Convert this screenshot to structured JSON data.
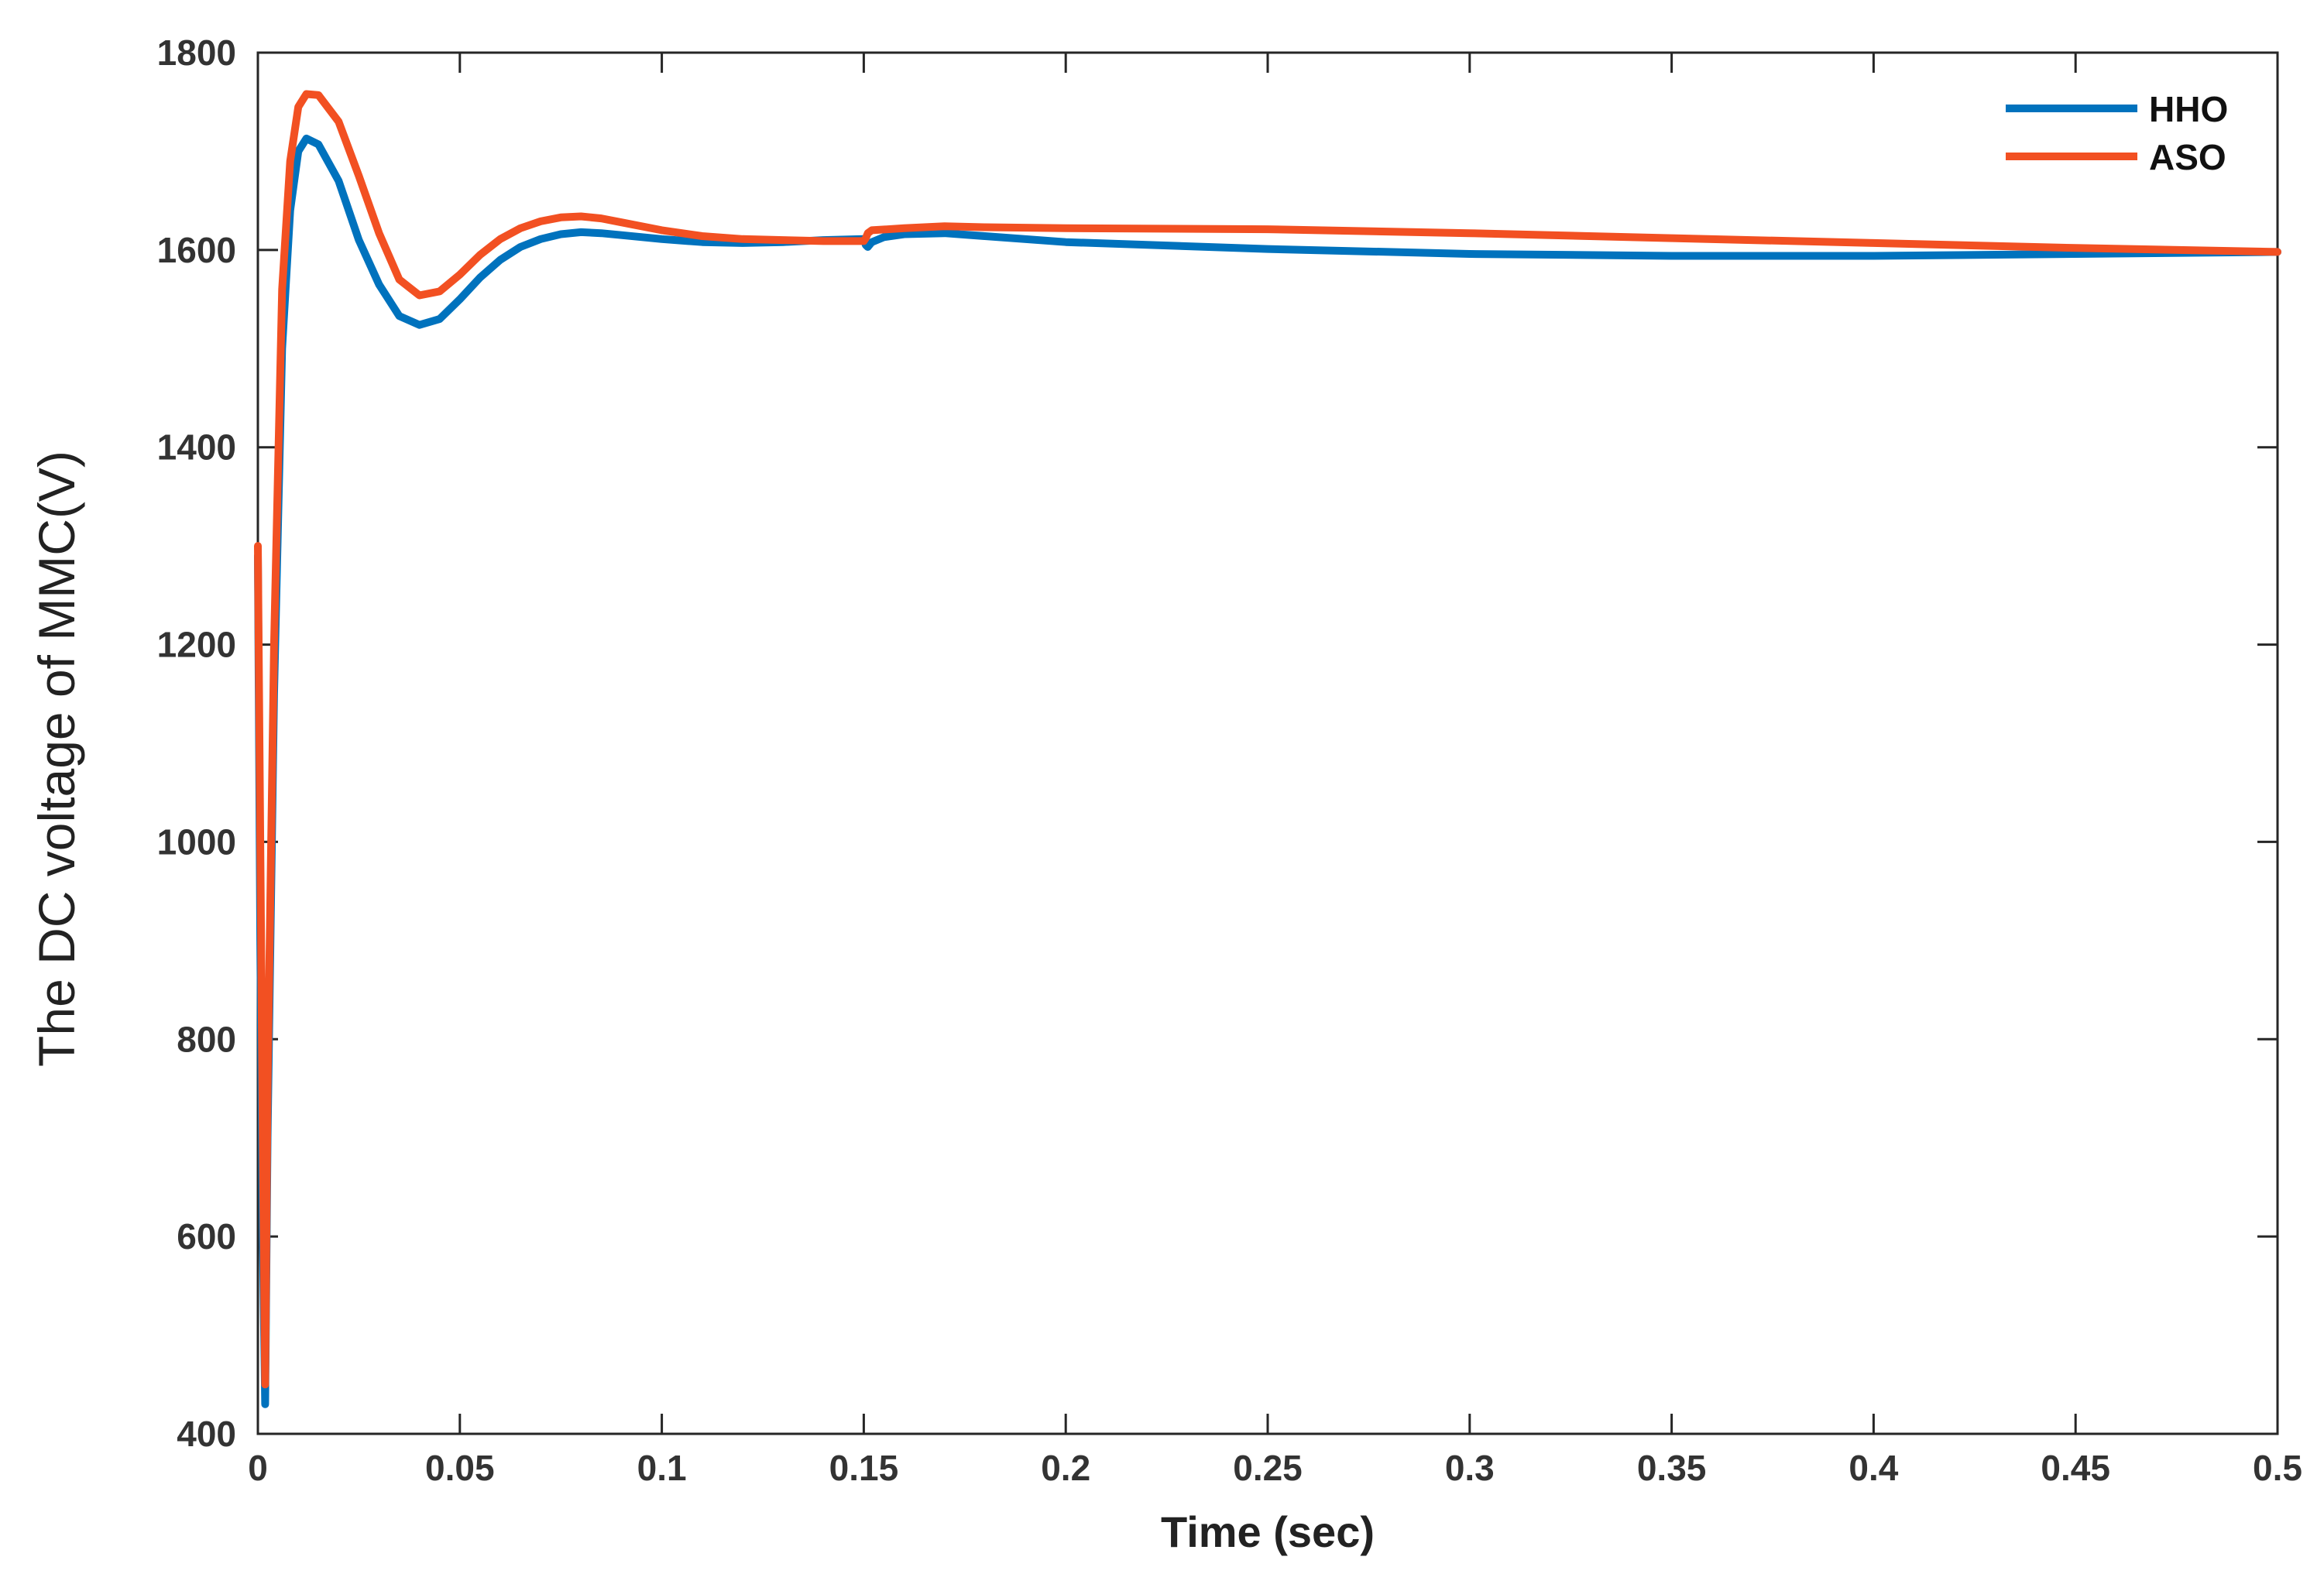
{
  "chart_data": {
    "type": "line",
    "title": "",
    "xlabel": "Time (sec)",
    "ylabel": "The DC voltage of MMC(V)",
    "xlim": [
      0,
      0.5
    ],
    "ylim": [
      400,
      1800
    ],
    "xticks": [
      0,
      0.05,
      0.1,
      0.15,
      0.2,
      0.25,
      0.3,
      0.35,
      0.4,
      0.45,
      0.5
    ],
    "xtick_labels": [
      "0",
      "0.05",
      "0.1",
      "0.15",
      "0.2",
      "0.25",
      "0.3",
      "0.35",
      "0.4",
      "0.45",
      "0.5"
    ],
    "yticks": [
      400,
      600,
      800,
      1000,
      1200,
      1400,
      1600,
      1800
    ],
    "ytick_labels": [
      "400",
      "600",
      "800",
      "1000",
      "1200",
      "1400",
      "1600",
      "1800"
    ],
    "grid": false,
    "legend_position": "top-right",
    "series": [
      {
        "name": "HHO",
        "color": "#0072BD",
        "points": [
          [
            0.0,
            1290
          ],
          [
            0.0006,
            900
          ],
          [
            0.0012,
            600
          ],
          [
            0.0018,
            430
          ],
          [
            0.0024,
            700
          ],
          [
            0.004,
            1150
          ],
          [
            0.006,
            1500
          ],
          [
            0.008,
            1640
          ],
          [
            0.01,
            1700
          ],
          [
            0.012,
            1713
          ],
          [
            0.015,
            1707
          ],
          [
            0.02,
            1670
          ],
          [
            0.025,
            1610
          ],
          [
            0.03,
            1565
          ],
          [
            0.035,
            1533
          ],
          [
            0.04,
            1524
          ],
          [
            0.045,
            1530
          ],
          [
            0.05,
            1550
          ],
          [
            0.055,
            1572
          ],
          [
            0.06,
            1590
          ],
          [
            0.065,
            1603
          ],
          [
            0.07,
            1611
          ],
          [
            0.075,
            1616
          ],
          [
            0.08,
            1618
          ],
          [
            0.085,
            1617
          ],
          [
            0.09,
            1615
          ],
          [
            0.1,
            1611
          ],
          [
            0.11,
            1608
          ],
          [
            0.12,
            1607
          ],
          [
            0.13,
            1608
          ],
          [
            0.14,
            1610
          ],
          [
            0.15,
            1611
          ],
          [
            0.1505,
            1605
          ],
          [
            0.151,
            1603
          ],
          [
            0.152,
            1608
          ],
          [
            0.155,
            1613
          ],
          [
            0.16,
            1616
          ],
          [
            0.17,
            1617
          ],
          [
            0.18,
            1614
          ],
          [
            0.2,
            1608
          ],
          [
            0.25,
            1601
          ],
          [
            0.3,
            1596
          ],
          [
            0.35,
            1594
          ],
          [
            0.4,
            1594
          ],
          [
            0.45,
            1596
          ],
          [
            0.5,
            1598
          ]
        ]
      },
      {
        "name": "ASO",
        "color": "#F25022",
        "points": [
          [
            0.0,
            1300
          ],
          [
            0.0006,
            1000
          ],
          [
            0.0012,
            700
          ],
          [
            0.0018,
            450
          ],
          [
            0.0024,
            750
          ],
          [
            0.004,
            1200
          ],
          [
            0.006,
            1560
          ],
          [
            0.008,
            1690
          ],
          [
            0.01,
            1745
          ],
          [
            0.012,
            1758
          ],
          [
            0.015,
            1757
          ],
          [
            0.02,
            1730
          ],
          [
            0.025,
            1675
          ],
          [
            0.03,
            1617
          ],
          [
            0.035,
            1570
          ],
          [
            0.04,
            1554
          ],
          [
            0.045,
            1558
          ],
          [
            0.05,
            1575
          ],
          [
            0.055,
            1595
          ],
          [
            0.06,
            1611
          ],
          [
            0.065,
            1622
          ],
          [
            0.07,
            1629
          ],
          [
            0.075,
            1633
          ],
          [
            0.08,
            1634
          ],
          [
            0.085,
            1632
          ],
          [
            0.09,
            1628
          ],
          [
            0.1,
            1620
          ],
          [
            0.11,
            1614
          ],
          [
            0.12,
            1611
          ],
          [
            0.13,
            1610
          ],
          [
            0.14,
            1609
          ],
          [
            0.15,
            1609
          ],
          [
            0.1505,
            1612
          ],
          [
            0.151,
            1617
          ],
          [
            0.152,
            1620
          ],
          [
            0.16,
            1622
          ],
          [
            0.17,
            1624
          ],
          [
            0.18,
            1623
          ],
          [
            0.2,
            1622
          ],
          [
            0.25,
            1621
          ],
          [
            0.3,
            1617
          ],
          [
            0.35,
            1612
          ],
          [
            0.4,
            1607
          ],
          [
            0.45,
            1602
          ],
          [
            0.5,
            1598
          ]
        ]
      }
    ]
  }
}
